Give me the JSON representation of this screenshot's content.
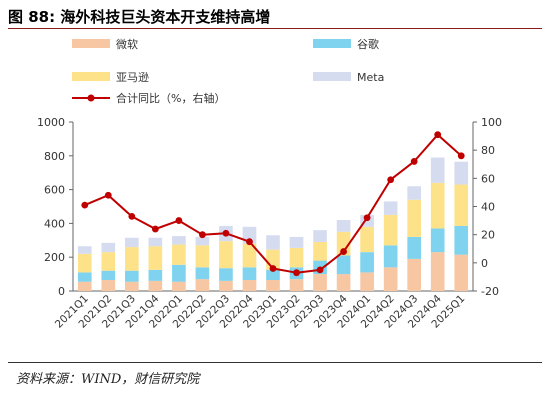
{
  "figure": {
    "title": "图 88:  海外科技巨头资本开支维持高增",
    "source": "资料来源：WIND，财信研究院"
  },
  "colors": {
    "microsoft": "#f7c6a2",
    "google": "#7fd3ee",
    "amazon": "#fde28a",
    "meta": "#d6dcf0",
    "line": "#c00000",
    "title_rule": "#8a1a1a"
  },
  "chart_data": {
    "type": "bar",
    "stacked": true,
    "categories": [
      "2021Q1",
      "2021Q2",
      "2021Q3",
      "2021Q4",
      "2022Q1",
      "2022Q2",
      "2022Q3",
      "2022Q4",
      "2023Q1",
      "2023Q2",
      "2023Q3",
      "2023Q4",
      "2024Q1",
      "2024Q2",
      "2024Q3",
      "2024Q4",
      "2025Q1"
    ],
    "series": [
      {
        "name": "微软",
        "values": [
          55,
          65,
          55,
          60,
          55,
          70,
          60,
          65,
          65,
          70,
          100,
          100,
          110,
          140,
          190,
          230,
          215
        ]
      },
      {
        "name": "谷歌",
        "values": [
          55,
          55,
          65,
          65,
          100,
          70,
          75,
          75,
          60,
          70,
          80,
          110,
          120,
          130,
          130,
          140,
          170
        ]
      },
      {
        "name": "亚马逊",
        "values": [
          110,
          110,
          140,
          140,
          120,
          130,
          160,
          140,
          120,
          115,
          110,
          140,
          150,
          180,
          220,
          270,
          245
        ]
      },
      {
        "name": "Meta",
        "values": [
          45,
          55,
          55,
          50,
          50,
          50,
          90,
          100,
          85,
          65,
          70,
          70,
          70,
          80,
          80,
          150,
          135
        ]
      }
    ],
    "line": {
      "name": "合计同比（%，右轴）",
      "axis": "right",
      "values": [
        41,
        48,
        33,
        24,
        30,
        20,
        21,
        15,
        -4,
        -7,
        -5,
        8,
        32,
        59,
        72,
        91,
        76
      ]
    },
    "ylim": [
      0,
      1000
    ],
    "yticks": [
      0,
      200,
      400,
      600,
      800,
      1000
    ],
    "y2lim": [
      -20,
      100
    ],
    "y2ticks": [
      -20,
      0,
      20,
      40,
      60,
      80,
      100
    ],
    "grid": false,
    "legend_position": "top"
  }
}
